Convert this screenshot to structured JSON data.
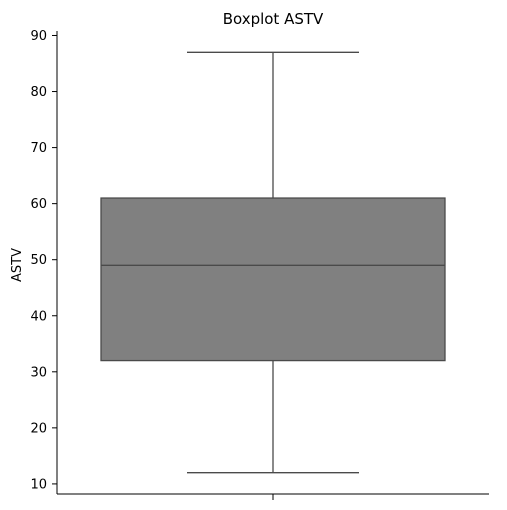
{
  "chart_data": {
    "type": "boxplot",
    "title": "Boxplot ASTV",
    "xlabel": "",
    "ylabel": "ASTV",
    "ylim": [
      8.2,
      90.8
    ],
    "yticks": [
      10,
      20,
      30,
      40,
      50,
      60,
      70,
      80,
      90
    ],
    "box": {
      "min": 12,
      "q1": 32,
      "median": 49,
      "q3": 61,
      "max": 87
    },
    "box_color": "#808080",
    "line_color": "#4a4a4a",
    "grid": false,
    "legend": "none"
  }
}
